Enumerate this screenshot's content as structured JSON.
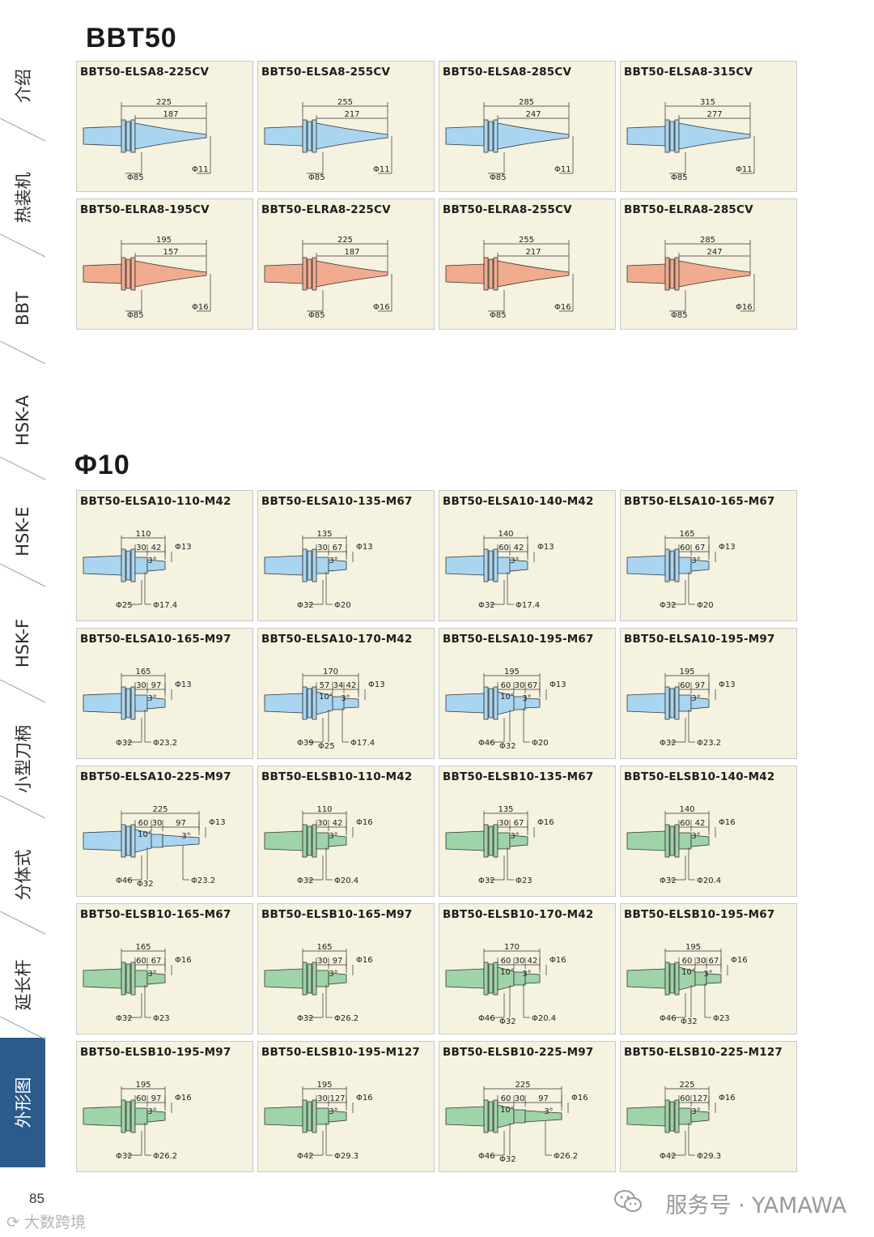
{
  "sidebar": {
    "tabs": [
      {
        "label": "介绍"
      },
      {
        "label": "热装机"
      },
      {
        "label": "BBT"
      },
      {
        "label": "HSK-A"
      },
      {
        "label": "HSK-E"
      },
      {
        "label": "HSK-F"
      },
      {
        "label": "小型刀柄"
      },
      {
        "label": "分体式"
      },
      {
        "label": "延长杆"
      },
      {
        "label": "外形图"
      }
    ]
  },
  "sections": {
    "bbt50": {
      "title": "BBT50"
    },
    "phi10": {
      "title": "Φ10"
    }
  },
  "cards": [
    {
      "title": "BBT50-ELSA8-225CV",
      "style": "taper",
      "color": "#a9d5f0",
      "dims": [
        "225",
        "187"
      ],
      "dias": [
        "Φ85",
        "Φ11"
      ]
    },
    {
      "title": "BBT50-ELSA8-255CV",
      "style": "taper",
      "color": "#a9d5f0",
      "dims": [
        "255",
        "217"
      ],
      "dias": [
        "Φ85",
        "Φ11"
      ]
    },
    {
      "title": "BBT50-ELSA8-285CV",
      "style": "taper",
      "color": "#a9d5f0",
      "dims": [
        "285",
        "247"
      ],
      "dias": [
        "Φ85",
        "Φ11"
      ]
    },
    {
      "title": "BBT50-ELSA8-315CV",
      "style": "taper",
      "color": "#a9d5f0",
      "dims": [
        "315",
        "277"
      ],
      "dias": [
        "Φ85",
        "Φ11"
      ]
    },
    {
      "title": "BBT50-ELRA8-195CV",
      "style": "taper",
      "color": "#f1ab8e",
      "dims": [
        "195",
        "157"
      ],
      "dias": [
        "Φ85",
        "Φ16"
      ]
    },
    {
      "title": "BBT50-ELRA8-225CV",
      "style": "taper",
      "color": "#f1ab8e",
      "dims": [
        "225",
        "187"
      ],
      "dias": [
        "Φ85",
        "Φ16"
      ]
    },
    {
      "title": "BBT50-ELRA8-255CV",
      "style": "taper",
      "color": "#f1ab8e",
      "dims": [
        "255",
        "217"
      ],
      "dias": [
        "Φ85",
        "Φ16"
      ]
    },
    {
      "title": "BBT50-ELRA8-285CV",
      "style": "taper",
      "color": "#f1ab8e",
      "dims": [
        "285",
        "247"
      ],
      "dias": [
        "Φ85",
        "Φ16"
      ]
    },
    {
      "title": "BBT50-ELSA10-110-M42",
      "style": "step",
      "color": "#a9d5f0",
      "dims": [
        "110",
        "30",
        "42"
      ],
      "angle": "3°",
      "tip": "Φ13",
      "dias": [
        "Φ25",
        "Φ17.4"
      ]
    },
    {
      "title": "BBT50-ELSA10-135-M67",
      "style": "step",
      "color": "#a9d5f0",
      "dims": [
        "135",
        "30",
        "67"
      ],
      "angle": "3°",
      "tip": "Φ13",
      "dias": [
        "Φ32",
        "Φ20"
      ]
    },
    {
      "title": "BBT50-ELSA10-140-M42",
      "style": "step",
      "color": "#a9d5f0",
      "dims": [
        "140",
        "60",
        "42"
      ],
      "angle": "3°",
      "tip": "Φ13",
      "dias": [
        "Φ32",
        "Φ17.4"
      ]
    },
    {
      "title": "BBT50-ELSA10-165-M67",
      "style": "step",
      "color": "#a9d5f0",
      "dims": [
        "165",
        "60",
        "67"
      ],
      "angle": "3°",
      "tip": "Φ13",
      "dias": [
        "Φ32",
        "Φ20"
      ]
    },
    {
      "title": "BBT50-ELSA10-165-M97",
      "style": "step",
      "color": "#a9d5f0",
      "dims": [
        "165",
        "30",
        "97"
      ],
      "angle": "3°",
      "tip": "Φ13",
      "dias": [
        "Φ32",
        "Φ23.2"
      ]
    },
    {
      "title": "BBT50-ELSA10-170-M42",
      "style": "step3",
      "color": "#a9d5f0",
      "dims": [
        "170",
        "57",
        "34",
        "42"
      ],
      "angle": "3°",
      "angle2": "10°",
      "tip": "Φ13",
      "dias": [
        "Φ39",
        "Φ25",
        "Φ17.4"
      ]
    },
    {
      "title": "BBT50-ELSA10-195-M67",
      "style": "step3",
      "color": "#a9d5f0",
      "dims": [
        "195",
        "60",
        "30",
        "67"
      ],
      "angle": "3°",
      "angle2": "10°",
      "tip": "Φ13",
      "dias": [
        "Φ46",
        "Φ32",
        "Φ20"
      ]
    },
    {
      "title": "BBT50-ELSA10-195-M97",
      "style": "step",
      "color": "#a9d5f0",
      "dims": [
        "195",
        "60",
        "97"
      ],
      "angle": "3°",
      "tip": "Φ13",
      "dias": [
        "Φ32",
        "Φ23.2"
      ]
    },
    {
      "title": "BBT50-ELSA10-225-M97",
      "style": "step4",
      "color": "#a9d5f0",
      "dims": [
        "225",
        "60",
        "30",
        "97"
      ],
      "angle": "3°",
      "angle2": "10°",
      "tip": "Φ13",
      "dias": [
        "Φ46",
        "Φ32",
        "Φ23.2"
      ]
    },
    {
      "title": "BBT50-ELSB10-110-M42",
      "style": "step",
      "color": "#9fd3a8",
      "dims": [
        "110",
        "30",
        "42"
      ],
      "angle": "3°",
      "tip": "Φ16",
      "dias": [
        "Φ32",
        "Φ20.4"
      ]
    },
    {
      "title": "BBT50-ELSB10-135-M67",
      "style": "step",
      "color": "#9fd3a8",
      "dims": [
        "135",
        "30",
        "67"
      ],
      "angle": "3°",
      "tip": "Φ16",
      "dias": [
        "Φ32",
        "Φ23"
      ]
    },
    {
      "title": "BBT50-ELSB10-140-M42",
      "style": "step",
      "color": "#9fd3a8",
      "dims": [
        "140",
        "60",
        "42"
      ],
      "angle": "3°",
      "tip": "Φ16",
      "dias": [
        "Φ32",
        "Φ20.4"
      ]
    },
    {
      "title": "BBT50-ELSB10-165-M67",
      "style": "step",
      "color": "#9fd3a8",
      "dims": [
        "165",
        "60",
        "67"
      ],
      "angle": "3°",
      "tip": "Φ16",
      "dias": [
        "Φ32",
        "Φ23"
      ]
    },
    {
      "title": "BBT50-ELSB10-165-M97",
      "style": "step",
      "color": "#9fd3a8",
      "dims": [
        "165",
        "30",
        "97"
      ],
      "angle": "3°",
      "tip": "Φ16",
      "dias": [
        "Φ32",
        "Φ26.2"
      ]
    },
    {
      "title": "BBT50-ELSB10-170-M42",
      "style": "step3",
      "color": "#9fd3a8",
      "dims": [
        "170",
        "60",
        "30",
        "42"
      ],
      "angle": "3°",
      "angle2": "10°",
      "tip": "Φ16",
      "dias": [
        "Φ46",
        "Φ32",
        "Φ20.4"
      ]
    },
    {
      "title": "BBT50-ELSB10-195-M67",
      "style": "step3",
      "color": "#9fd3a8",
      "dims": [
        "195",
        "60",
        "30",
        "67"
      ],
      "angle": "3°",
      "angle2": "10°",
      "tip": "Φ16",
      "dias": [
        "Φ46",
        "Φ32",
        "Φ23"
      ]
    },
    {
      "title": "BBT50-ELSB10-195-M97",
      "style": "step",
      "color": "#9fd3a8",
      "dims": [
        "195",
        "60",
        "97"
      ],
      "angle": "3°",
      "tip": "Φ16",
      "dias": [
        "Φ32",
        "Φ26.2"
      ]
    },
    {
      "title": "BBT50-ELSB10-195-M127",
      "style": "step",
      "color": "#9fd3a8",
      "dims": [
        "195",
        "30",
        "127"
      ],
      "angle": "3°",
      "tip": "Φ16",
      "dias": [
        "Φ42",
        "Φ29.3"
      ]
    },
    {
      "title": "BBT50-ELSB10-225-M97",
      "style": "step4",
      "color": "#9fd3a8",
      "dims": [
        "225",
        "60",
        "30",
        "97"
      ],
      "angle": "3°",
      "angle2": "10°",
      "tip": "Φ16",
      "dias": [
        "Φ46",
        "Φ32",
        "Φ26.2"
      ]
    },
    {
      "title": "BBT50-ELSB10-225-M127",
      "style": "step",
      "color": "#9fd3a8",
      "dims": [
        "225",
        "60",
        "127"
      ],
      "angle": "3°",
      "tip": "Φ16",
      "dias": [
        "Φ42",
        "Φ29.3"
      ]
    }
  ],
  "footer": {
    "page_number": "85",
    "brand": "服务号 · YAMAWA",
    "watermark": "大数跨境"
  }
}
